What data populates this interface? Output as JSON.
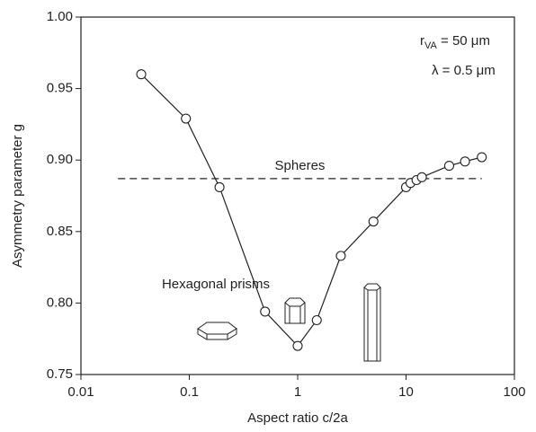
{
  "chart_data": {
    "type": "line",
    "x_label": "Aspect ratio c/2a",
    "y_label": "Asymmetry parameter g",
    "x_scale": "log",
    "xlim": [
      0.01,
      100
    ],
    "xticks": [
      0.01,
      0.1,
      1,
      10,
      100
    ],
    "ylim": [
      0.75,
      1.0
    ],
    "yticks": [
      {
        "value": 0.75,
        "label": "0.75"
      },
      {
        "value": 0.8,
        "label": "0.80"
      },
      {
        "value": 0.85,
        "label": "0.85"
      },
      {
        "value": 0.9,
        "label": "0.90"
      },
      {
        "value": 0.95,
        "label": "0.95"
      },
      {
        "value": 1.0,
        "label": "1.00"
      }
    ],
    "series": [
      {
        "name": "Hexagonal prisms",
        "color": "#222222",
        "x": [
          0.036,
          0.093,
          0.19,
          0.5,
          1,
          1.5,
          2.5,
          5,
          10,
          11,
          12.5,
          14,
          25,
          35,
          50
        ],
        "values": [
          0.96,
          0.929,
          0.881,
          0.794,
          0.77,
          0.788,
          0.833,
          0.857,
          0.881,
          0.884,
          0.886,
          0.888,
          0.896,
          0.899,
          0.902
        ]
      }
    ],
    "reference_line": {
      "label": "Spheres",
      "value": 0.887,
      "x_range": [
        0.022,
        50
      ]
    },
    "radius_label": {
      "symbol": "r",
      "subscript": "VA",
      "text": " = 50 μm"
    },
    "wavelength_label": "λ = 0.5 μm"
  }
}
